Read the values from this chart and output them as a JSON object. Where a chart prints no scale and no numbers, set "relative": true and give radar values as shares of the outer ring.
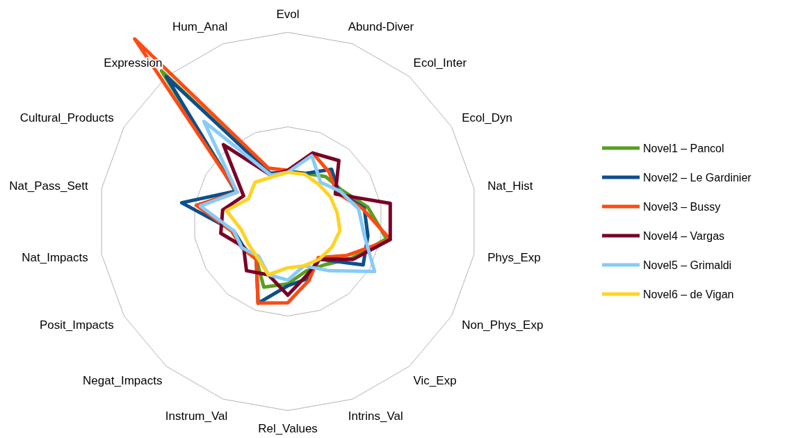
{
  "chart_data": {
    "type": "radar",
    "relative": true,
    "grid": true,
    "legend": "right",
    "categories": [
      "Evol",
      "Abund-Diver",
      "Ecol_Inter",
      "Ecol_Dyn",
      "Nat_Hist",
      "Phys_Exp",
      "Non_Phys_Exp",
      "Vic_Exp",
      "Intrins_Val",
      "Rel_Values",
      "Instrum_Val",
      "Negat_Impacts",
      "Posit_Impacts",
      "Nat_Impacts",
      "Nat_Pass_Sett",
      "Cultural_Products",
      "Expression",
      "Hum_Anal"
    ],
    "series": [
      {
        "name": "Novel1 – Pancol",
        "color": "#5a9e1e",
        "values": [
          0.265,
          0.27,
          0.31,
          0.33,
          0.43,
          0.53,
          0.39,
          0.3,
          0.28,
          0.33,
          0.37,
          0.26,
          0.28,
          0.3,
          0.49,
          0.31,
          1.04,
          0.27
        ]
      },
      {
        "name": "Novel2 – Le Gardinier",
        "color": "#0d4f8b",
        "values": [
          0.265,
          0.27,
          0.36,
          0.31,
          0.41,
          0.43,
          0.46,
          0.26,
          0.32,
          0.34,
          0.46,
          0.26,
          0.27,
          0.29,
          0.57,
          0.32,
          1.0,
          0.27
        ]
      },
      {
        "name": "Novel3 – Bussy",
        "color": "#ff4a12",
        "values": [
          0.27,
          0.385,
          0.34,
          0.3,
          0.4,
          0.55,
          0.36,
          0.25,
          0.33,
          0.43,
          0.46,
          0.26,
          0.28,
          0.3,
          0.49,
          0.31,
          1.26,
          0.3
        ]
      },
      {
        "name": "Novel4 – Vargas",
        "color": "#7a0025",
        "values": [
          0.27,
          0.385,
          0.42,
          0.29,
          0.55,
          0.55,
          0.4,
          0.26,
          0.3,
          0.39,
          0.3,
          0.34,
          0.27,
          0.36,
          0.35,
          0.27,
          0.53,
          0.26
        ]
      },
      {
        "name": "Novel5 – Grimaldi",
        "color": "#87cbf9",
        "values": [
          0.26,
          0.37,
          0.27,
          0.32,
          0.38,
          0.41,
          0.53,
          0.34,
          0.25,
          0.31,
          0.3,
          0.24,
          0.28,
          0.29,
          0.47,
          0.31,
          0.69,
          0.26
        ]
      },
      {
        "name": "Novel6 – de Vigan",
        "color": "#ffd323",
        "values": [
          0.26,
          0.265,
          0.255,
          0.26,
          0.265,
          0.28,
          0.27,
          0.26,
          0.25,
          0.245,
          0.3,
          0.25,
          0.24,
          0.25,
          0.33,
          0.24,
          0.27,
          0.25
        ]
      }
    ]
  }
}
